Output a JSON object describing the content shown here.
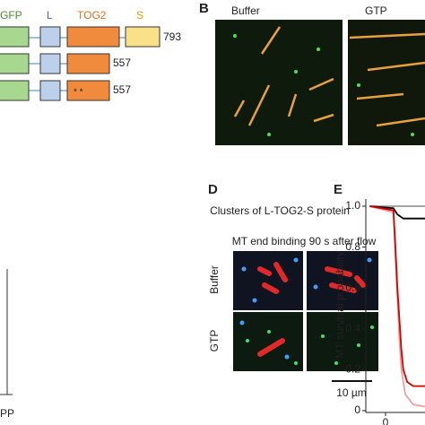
{
  "panel_a": {
    "domains": {
      "gfp": "GFP",
      "l": "L",
      "tog2": "TOG2",
      "s": "S"
    },
    "constructs": [
      {
        "length": 793
      },
      {
        "length": 557
      },
      {
        "length": 557,
        "marks": "* *"
      }
    ]
  },
  "panel_b": {
    "label": "B",
    "conditions": [
      "Buffer",
      "GTP"
    ]
  },
  "panel_d": {
    "label": "D",
    "title": "Clusters of L-TOG2-S protein",
    "columns": [
      "MT end binding",
      "90 s after flow"
    ],
    "rows": [
      "Buffer",
      "GTP"
    ],
    "scale_bar": "10 µm"
  },
  "panel_e": {
    "label": "E",
    "y_label": "MT survival probability",
    "ylim": [
      0,
      1.0
    ],
    "yticks": [
      {
        "value": 1.0,
        "label": "1.0"
      },
      0.8,
      0.6,
      0.4,
      0.2,
      0
    ],
    "xlim": [
      -0.5,
      1
    ],
    "xticks": [
      0
    ],
    "series": [
      {
        "color": "#f0a0a0",
        "x": [
          -0.4,
          0.2,
          0.25,
          0.3,
          0.35,
          0.4,
          0.5,
          0.7,
          1
        ],
        "values": [
          1,
          0.97,
          0.75,
          0.55,
          0.35,
          0.2,
          0.08,
          0.03,
          0.02
        ]
      },
      {
        "color": "#999999",
        "x": [
          -0.4,
          1
        ],
        "values": [
          1,
          1
        ]
      },
      {
        "color": "#000000",
        "x": [
          -0.4,
          0.2,
          0.3,
          0.45,
          1
        ],
        "values": [
          1,
          0.99,
          0.96,
          0.94,
          0.94
        ]
      },
      {
        "color": "#d40000",
        "x": [
          -0.4,
          0.2,
          0.25,
          0.3,
          0.35,
          0.4,
          0.45,
          0.55,
          0.7,
          1
        ],
        "values": [
          1,
          0.98,
          0.8,
          0.6,
          0.45,
          0.3,
          0.2,
          0.14,
          0.12,
          0.12
        ]
      }
    ]
  },
  "panel_left": {
    "axis_fragment": "PP"
  }
}
